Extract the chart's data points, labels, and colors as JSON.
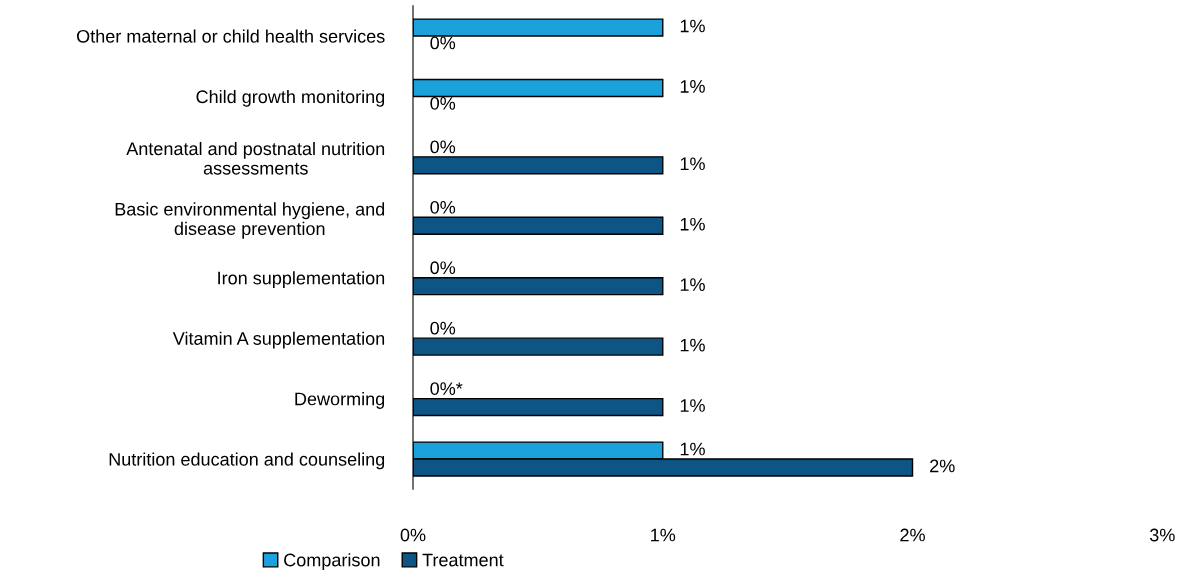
{
  "chart_data": {
    "type": "bar",
    "orientation": "horizontal",
    "categories": [
      "Other maternal or child health services",
      "Child growth monitoring",
      "Antenatal and postnatal nutrition\nassessments",
      "Basic environmental hygiene, and\ndisease prevention",
      "Iron supplementation",
      "Vitamin A supplementation",
      "Deworming",
      "Nutrition education and counseling"
    ],
    "series": [
      {
        "name": "Comparison",
        "color": "#1ba1dc",
        "values": [
          1,
          1,
          0,
          0,
          0,
          0,
          0,
          1
        ],
        "value_labels": [
          "1%",
          "1%",
          "0%",
          "0%",
          "0%",
          "0%",
          "0%*",
          "1%"
        ]
      },
      {
        "name": "Treatment",
        "color": "#0c5585",
        "values": [
          0,
          0,
          1,
          1,
          1,
          1,
          1,
          2
        ],
        "value_labels": [
          "0%",
          "0%",
          "1%",
          "1%",
          "1%",
          "1%",
          "1%",
          "2%"
        ]
      }
    ],
    "xlim": [
      0,
      3
    ],
    "xticks": [
      {
        "value": 0,
        "label": "0%"
      },
      {
        "value": 1,
        "label": "1%"
      },
      {
        "value": 2,
        "label": "2%"
      },
      {
        "value": 3,
        "label": "3%"
      }
    ],
    "grid": false,
    "legend": "bottom"
  }
}
